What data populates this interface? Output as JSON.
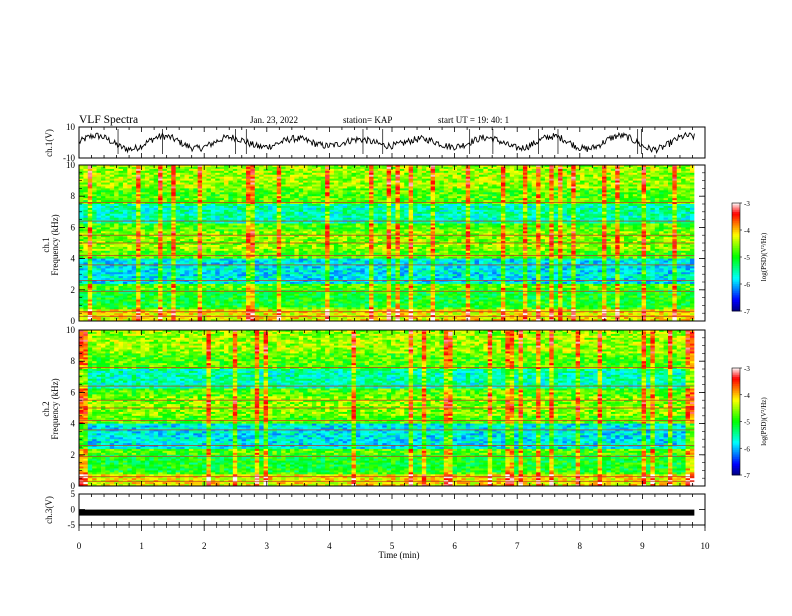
{
  "header": {
    "title": "VLF Spectra",
    "date": "Jan. 23, 2022",
    "station": "station= KAP",
    "start": "start UT =   19: 40: 1"
  },
  "colorbar": {
    "label": "log(PSD)(V²/Hz)",
    "ticks": [
      "-3",
      "-4",
      "-5",
      "-6",
      "-7"
    ],
    "range": [
      -7,
      -3
    ],
    "colors": [
      "#000080",
      "#0000ff",
      "#0080ff",
      "#00ffff",
      "#00ff80",
      "#00ff00",
      "#80ff00",
      "#ffff00",
      "#ff8000",
      "#ff0000",
      "#ffffff"
    ]
  },
  "chart_data": [
    {
      "type": "line",
      "name": "ch.1 waveform",
      "ylabel": "ch.1(V)",
      "ylim": [
        -10,
        10
      ],
      "yticks": [
        "10",
        "-10"
      ],
      "xlim": [
        0,
        10
      ],
      "note": "noisy waveform, roughly oscillating around 0 V with amplitude ~5 V"
    },
    {
      "type": "heatmap",
      "name": "ch.1 spectrogram",
      "ylabel": "ch.1\nFrequency (kHz)",
      "ylim": [
        0,
        10
      ],
      "yticks": [
        "0",
        "2",
        "4",
        "6",
        "8",
        "10"
      ],
      "xlim": [
        0,
        10
      ]
    },
    {
      "type": "heatmap",
      "name": "ch.2 spectrogram",
      "ylabel": "ch.2\nFrequency (kHz)",
      "ylim": [
        0,
        10
      ],
      "yticks": [
        "0",
        "2",
        "4",
        "6",
        "8",
        "10"
      ],
      "xlim": [
        0,
        10
      ]
    },
    {
      "type": "line",
      "name": "ch.3 waveform",
      "ylabel": "ch.3(V)",
      "ylim": [
        -5,
        5
      ],
      "yticks": [
        "5",
        "0",
        "-5"
      ],
      "xlim": [
        0,
        10
      ],
      "constant_value": -1
    }
  ],
  "xaxis": {
    "label": "Time (min)",
    "ticks": [
      "0",
      "1",
      "2",
      "3",
      "4",
      "5",
      "6",
      "7",
      "8",
      "9",
      "10"
    ],
    "range": [
      0,
      10
    ]
  }
}
